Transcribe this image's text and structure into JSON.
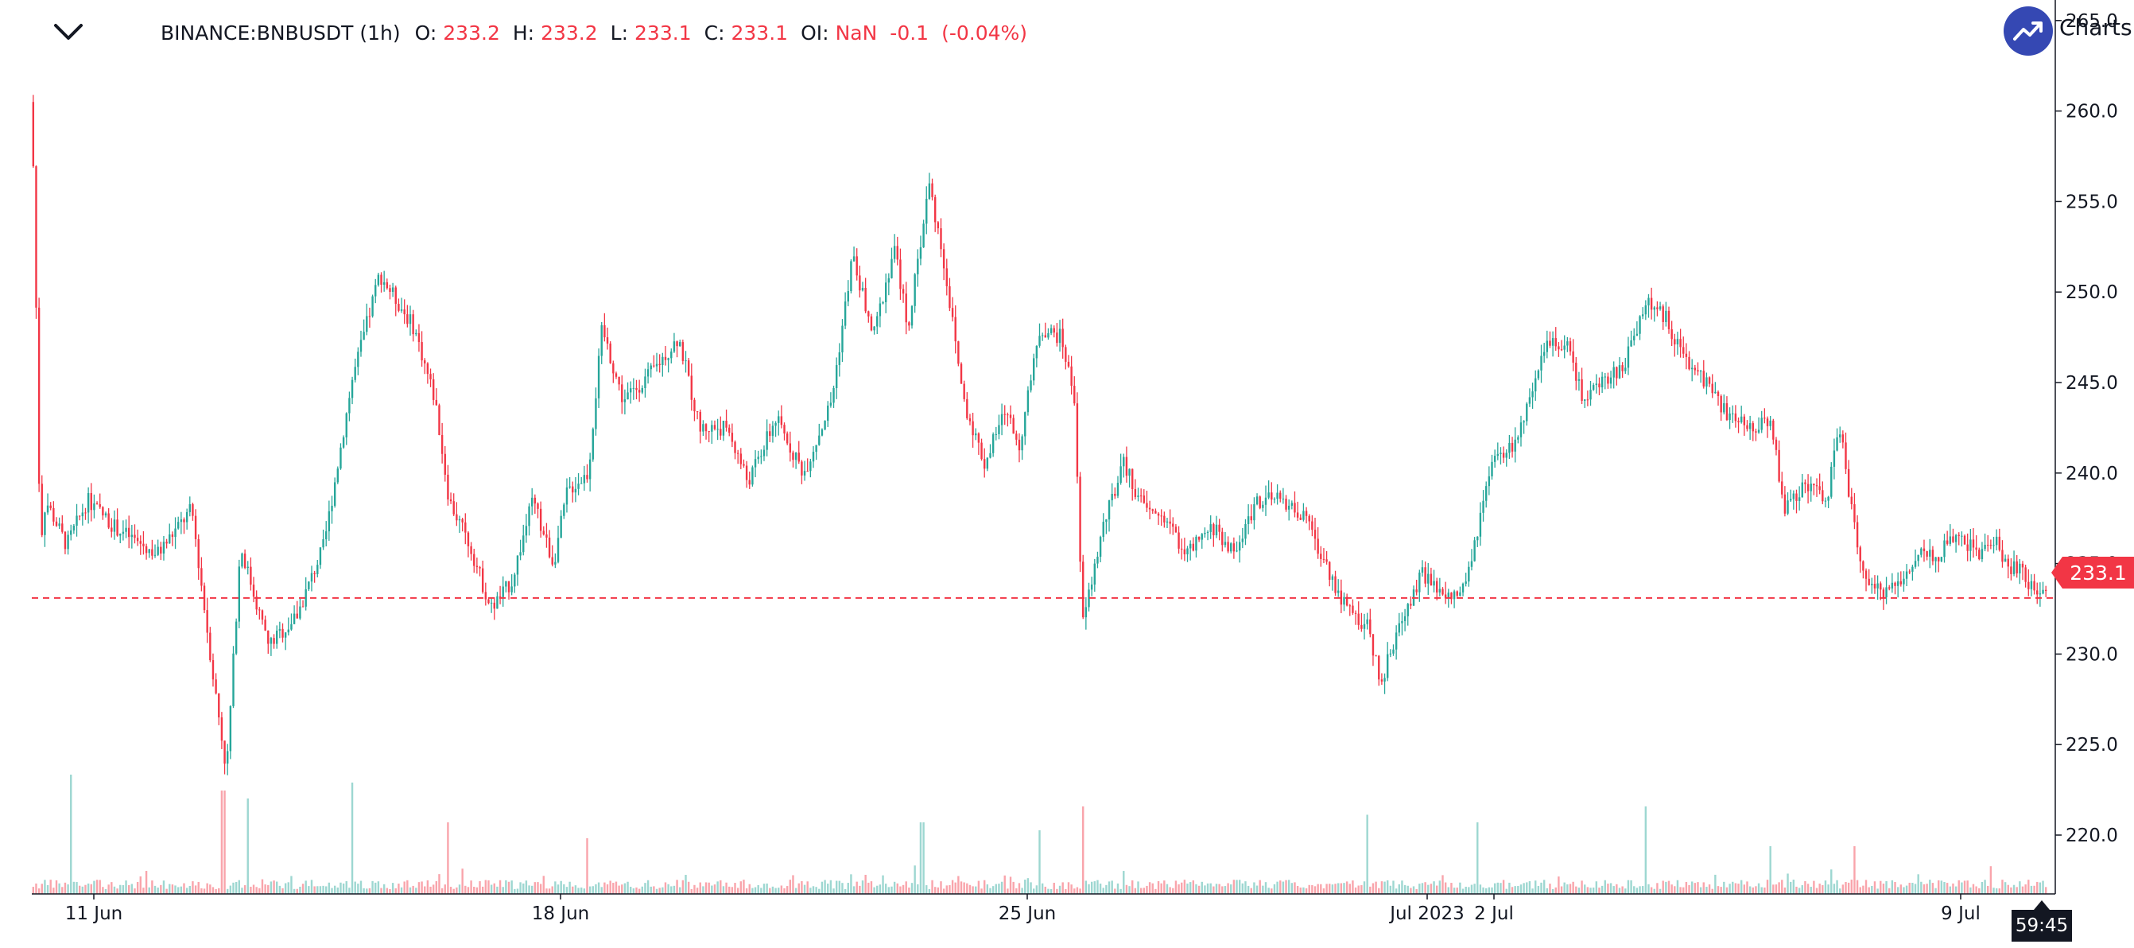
{
  "header": {
    "symbol": "BINANCE:BNBUSDT (1h)",
    "o_label": "O:",
    "o_value": "233.2",
    "h_label": "H:",
    "h_value": "233.2",
    "l_label": "L:",
    "l_value": "233.1",
    "c_label": "C:",
    "c_value": "233.1",
    "oi_label": "OI:",
    "oi_value": "NaN",
    "change": "-0.1",
    "change_pct": "(-0.04%)"
  },
  "badge": {
    "text": "Charts p",
    "icon": "trend-up-icon"
  },
  "last_price_tag": "233.1",
  "countdown": "59:45",
  "colors": {
    "up": "#26a69a",
    "down": "#f23645",
    "grid_axis": "#131722",
    "badge": "#3548b3"
  },
  "chart_data": {
    "type": "candlestick",
    "symbol": "BINANCE:BNBUSDT",
    "interval": "1h",
    "ylim": [
      217.5,
      265.0
    ],
    "y_ticks": [
      "220.0",
      "225.0",
      "230.0",
      "235.0",
      "240.0",
      "245.0",
      "250.0",
      "255.0",
      "260.0",
      "265.0"
    ],
    "x_ticks": [
      "11 Jun",
      "18 Jun",
      "25 Jun",
      "Jul 2023",
      "2 Jul",
      "9 Jul"
    ],
    "last_price": 233.1,
    "grid": false,
    "close_path": [
      {
        "d": 10.0,
        "p": 260.5
      },
      {
        "d": 10.05,
        "p": 252.0
      },
      {
        "d": 10.12,
        "p": 236.0
      },
      {
        "d": 10.2,
        "p": 238.5
      },
      {
        "d": 10.5,
        "p": 236.0
      },
      {
        "d": 10.8,
        "p": 238.5
      },
      {
        "d": 11.2,
        "p": 237.0
      },
      {
        "d": 11.8,
        "p": 235.5
      },
      {
        "d": 12.3,
        "p": 238.0
      },
      {
        "d": 12.6,
        "p": 229.0
      },
      {
        "d": 12.8,
        "p": 223.5
      },
      {
        "d": 13.0,
        "p": 236.0
      },
      {
        "d": 13.4,
        "p": 230.5
      },
      {
        "d": 13.8,
        "p": 232.0
      },
      {
        "d": 14.2,
        "p": 236.0
      },
      {
        "d": 14.6,
        "p": 245.0
      },
      {
        "d": 15.0,
        "p": 251.0
      },
      {
        "d": 15.5,
        "p": 248.0
      },
      {
        "d": 15.8,
        "p": 244.0
      },
      {
        "d": 16.0,
        "p": 238.5
      },
      {
        "d": 16.3,
        "p": 236.0
      },
      {
        "d": 16.6,
        "p": 232.5
      },
      {
        "d": 16.9,
        "p": 234.0
      },
      {
        "d": 17.2,
        "p": 238.5
      },
      {
        "d": 17.5,
        "p": 235.0
      },
      {
        "d": 17.7,
        "p": 239.0
      },
      {
        "d": 18.0,
        "p": 240.0
      },
      {
        "d": 18.2,
        "p": 248.0
      },
      {
        "d": 18.5,
        "p": 244.0
      },
      {
        "d": 18.9,
        "p": 245.5
      },
      {
        "d": 19.3,
        "p": 247.5
      },
      {
        "d": 19.6,
        "p": 242.5
      },
      {
        "d": 20.0,
        "p": 242.5
      },
      {
        "d": 20.3,
        "p": 239.5
      },
      {
        "d": 20.7,
        "p": 243.0
      },
      {
        "d": 21.1,
        "p": 240.0
      },
      {
        "d": 21.5,
        "p": 244.0
      },
      {
        "d": 21.8,
        "p": 252.0
      },
      {
        "d": 22.1,
        "p": 247.5
      },
      {
        "d": 22.4,
        "p": 252.5
      },
      {
        "d": 22.6,
        "p": 248.0
      },
      {
        "d": 22.9,
        "p": 256.0
      },
      {
        "d": 23.1,
        "p": 252.0
      },
      {
        "d": 23.4,
        "p": 244.0
      },
      {
        "d": 23.7,
        "p": 240.5
      },
      {
        "d": 24.0,
        "p": 243.5
      },
      {
        "d": 24.2,
        "p": 241.5
      },
      {
        "d": 24.5,
        "p": 248.0
      },
      {
        "d": 24.8,
        "p": 247.5
      },
      {
        "d": 25.0,
        "p": 244.0
      },
      {
        "d": 25.1,
        "p": 231.5
      },
      {
        "d": 25.4,
        "p": 237.0
      },
      {
        "d": 25.7,
        "p": 240.5
      },
      {
        "d": 26.0,
        "p": 238.0
      },
      {
        "d": 26.3,
        "p": 237.5
      },
      {
        "d": 26.6,
        "p": 235.5
      },
      {
        "d": 27.0,
        "p": 237.0
      },
      {
        "d": 27.3,
        "p": 235.5
      },
      {
        "d": 27.6,
        "p": 238.5
      },
      {
        "d": 28.0,
        "p": 238.5
      },
      {
        "d": 28.3,
        "p": 237.5
      },
      {
        "d": 28.6,
        "p": 235.0
      },
      {
        "d": 28.9,
        "p": 232.5
      },
      {
        "d": 29.2,
        "p": 231.5
      },
      {
        "d": 29.4,
        "p": 228.5
      },
      {
        "d": 29.7,
        "p": 232.0
      },
      {
        "d": 30.0,
        "p": 234.5
      },
      {
        "d": 30.3,
        "p": 233.0
      },
      {
        "d": 30.6,
        "p": 233.5
      },
      {
        "d": 30.8,
        "p": 237.0
      },
      {
        "d": 31.0,
        "p": 240.5
      },
      {
        "d": 31.3,
        "p": 241.5
      },
      {
        "d": 31.6,
        "p": 244.5
      },
      {
        "d": 31.8,
        "p": 247.5
      },
      {
        "d": 32.1,
        "p": 247.0
      },
      {
        "d": 32.3,
        "p": 244.0
      },
      {
        "d": 32.6,
        "p": 245.0
      },
      {
        "d": 32.9,
        "p": 246.0
      },
      {
        "d": 33.2,
        "p": 249.5
      },
      {
        "d": 33.5,
        "p": 248.5
      },
      {
        "d": 33.8,
        "p": 246.0
      },
      {
        "d": 34.1,
        "p": 245.0
      },
      {
        "d": 34.4,
        "p": 243.0
      },
      {
        "d": 34.7,
        "p": 242.5
      },
      {
        "d": 35.0,
        "p": 243.0
      },
      {
        "d": 35.2,
        "p": 238.0
      },
      {
        "d": 35.5,
        "p": 239.5
      },
      {
        "d": 35.8,
        "p": 238.5
      },
      {
        "d": 36.0,
        "p": 242.5
      },
      {
        "d": 36.2,
        "p": 237.0
      },
      {
        "d": 36.4,
        "p": 233.5
      },
      {
        "d": 36.6,
        "p": 233.5
      },
      {
        "d": 36.9,
        "p": 234.0
      },
      {
        "d": 37.1,
        "p": 235.5
      },
      {
        "d": 37.4,
        "p": 235.5
      },
      {
        "d": 37.7,
        "p": 236.5
      },
      {
        "d": 38.0,
        "p": 235.5
      },
      {
        "d": 38.2,
        "p": 236.5
      },
      {
        "d": 38.4,
        "p": 235.0
      },
      {
        "d": 38.6,
        "p": 234.5
      },
      {
        "d": 38.8,
        "p": 233.5
      },
      {
        "d": 38.95,
        "p": 233.1
      }
    ],
    "volume_spikes": [
      {
        "d": 10.55,
        "v": 0.75
      },
      {
        "d": 12.75,
        "v": 0.65
      },
      {
        "d": 13.1,
        "v": 0.6
      },
      {
        "d": 14.6,
        "v": 0.7
      },
      {
        "d": 16.0,
        "v": 0.45
      },
      {
        "d": 18.0,
        "v": 0.35
      },
      {
        "d": 22.8,
        "v": 0.45
      },
      {
        "d": 24.5,
        "v": 0.4
      },
      {
        "d": 25.1,
        "v": 0.55
      },
      {
        "d": 29.2,
        "v": 0.45
      },
      {
        "d": 30.8,
        "v": 0.45
      },
      {
        "d": 33.2,
        "v": 0.55
      },
      {
        "d": 35.0,
        "v": 0.3
      },
      {
        "d": 36.2,
        "v": 0.3
      }
    ]
  }
}
